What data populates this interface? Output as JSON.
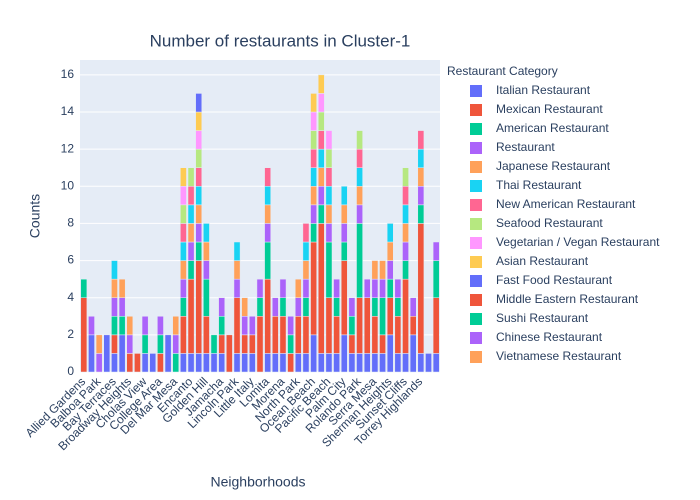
{
  "chart_data": {
    "type": "bar",
    "title": "Number of restaurants in Cluster-1",
    "x_label": "Neighborhoods",
    "y_label": "Counts",
    "legend_title": "Restaurant Category",
    "categories": [
      "Allied Gardens",
      null,
      "Balboa Park",
      null,
      "Bay Terraces",
      null,
      "Broadway Heights",
      null,
      "Cholas View",
      null,
      "College Area",
      null,
      "Del Mar Mesa",
      null,
      "Encanto",
      null,
      "Golden Hill",
      null,
      "Jamacha",
      null,
      "Lincoln Park",
      null,
      "Little Italy",
      null,
      "Lomita",
      null,
      "Morena",
      null,
      "North Park",
      null,
      "Ocean Beach",
      null,
      "Pacific Beach",
      null,
      "Palm City",
      null,
      "Rolando Park",
      null,
      "Serra Mesa",
      null,
      "Sherman Heights",
      null,
      "Sunset Cliffs",
      null,
      "Torrey Highlands",
      null,
      null
    ],
    "ylim": [
      0,
      16.8
    ],
    "yticks": [
      0,
      2,
      4,
      6,
      8,
      10,
      12,
      14,
      16
    ],
    "grid": true,
    "series": [
      {
        "name": "Italian Restaurant",
        "color": "#636efa",
        "values": [
          0,
          2,
          0,
          2,
          1,
          2,
          0,
          0,
          1,
          1,
          0,
          2,
          0,
          1,
          1,
          1,
          1,
          1,
          1,
          0,
          1,
          1,
          1,
          0,
          1,
          1,
          1,
          0,
          1,
          1,
          2,
          1,
          1,
          1,
          2,
          1,
          1,
          1,
          1,
          1,
          2,
          1,
          1,
          2,
          1,
          1,
          1
        ]
      },
      {
        "name": "Mexican Restaurant",
        "color": "#EF553B",
        "values": [
          4,
          0,
          0,
          0,
          1,
          0,
          1,
          1,
          0,
          0,
          1,
          0,
          0,
          2,
          4,
          5,
          2,
          0,
          1,
          2,
          3,
          1,
          1,
          3,
          4,
          2,
          2,
          1,
          2,
          2,
          5,
          7,
          3,
          2,
          4,
          1,
          3,
          3,
          2,
          1,
          2,
          2,
          4,
          1,
          7,
          0,
          3
        ]
      },
      {
        "name": "American Restaurant",
        "color": "#00cc96",
        "values": [
          1,
          0,
          0,
          0,
          1,
          1,
          0,
          0,
          1,
          0,
          1,
          0,
          1,
          1,
          1,
          1,
          2,
          1,
          1,
          0,
          0,
          0,
          0,
          1,
          2,
          0,
          1,
          1,
          0,
          1,
          1,
          1,
          3,
          1,
          1,
          1,
          4,
          0,
          1,
          2,
          1,
          1,
          1,
          0,
          1,
          0,
          2
        ]
      },
      {
        "name": "Restaurant",
        "color": "#ab63fa",
        "values": [
          0,
          1,
          1,
          0,
          1,
          1,
          1,
          0,
          1,
          0,
          1,
          0,
          1,
          1,
          1,
          1,
          1,
          0,
          1,
          0,
          1,
          1,
          1,
          1,
          1,
          1,
          1,
          1,
          1,
          1,
          1,
          1,
          1,
          1,
          1,
          1,
          1,
          1,
          1,
          1,
          1,
          1,
          1,
          1,
          1,
          0,
          1
        ]
      },
      {
        "name": "Japanese Restaurant",
        "color": "#FFA15A",
        "values": [
          0,
          0,
          1,
          0,
          1,
          1,
          1,
          0,
          0,
          0,
          0,
          0,
          1,
          1,
          1,
          1,
          1,
          0,
          0,
          0,
          1,
          1,
          0,
          0,
          1,
          0,
          0,
          0,
          1,
          1,
          1,
          1,
          1,
          0,
          1,
          0,
          1,
          0,
          1,
          1,
          1,
          0,
          1,
          0,
          1,
          0,
          0
        ]
      },
      {
        "name": "Thai Restaurant",
        "color": "#19d3f3",
        "values": [
          0,
          0,
          0,
          0,
          1,
          0,
          0,
          0,
          0,
          0,
          0,
          0,
          0,
          1,
          1,
          1,
          1,
          0,
          0,
          0,
          1,
          0,
          0,
          0,
          1,
          0,
          0,
          0,
          0,
          1,
          1,
          1,
          1,
          0,
          1,
          0,
          1,
          0,
          0,
          0,
          1,
          0,
          1,
          0,
          1,
          0,
          0
        ]
      },
      {
        "name": "New American Restaurant",
        "color": "#FF6692",
        "values": [
          0,
          0,
          0,
          0,
          0,
          0,
          0,
          0,
          0,
          0,
          0,
          0,
          0,
          1,
          1,
          1,
          0,
          0,
          0,
          0,
          0,
          0,
          0,
          0,
          1,
          0,
          0,
          0,
          0,
          1,
          1,
          1,
          1,
          0,
          0,
          0,
          1,
          0,
          0,
          0,
          0,
          0,
          1,
          0,
          1,
          0,
          0
        ]
      },
      {
        "name": "Seafood Restaurant",
        "color": "#B6E880",
        "values": [
          0,
          0,
          0,
          0,
          0,
          0,
          0,
          0,
          0,
          0,
          0,
          0,
          0,
          1,
          1,
          1,
          0,
          0,
          0,
          0,
          0,
          0,
          0,
          0,
          0,
          0,
          0,
          0,
          0,
          0,
          1,
          1,
          1,
          0,
          0,
          0,
          1,
          0,
          0,
          0,
          0,
          0,
          1,
          0,
          0,
          0,
          0
        ]
      },
      {
        "name": "Vegetarian / Vegan Restaurant",
        "color": "#FF97FF",
        "values": [
          0,
          0,
          0,
          0,
          0,
          0,
          0,
          0,
          0,
          0,
          0,
          0,
          0,
          1,
          0,
          1,
          0,
          0,
          0,
          0,
          0,
          0,
          0,
          0,
          0,
          0,
          0,
          0,
          0,
          0,
          1,
          1,
          1,
          0,
          0,
          0,
          0,
          0,
          0,
          0,
          0,
          0,
          0,
          0,
          0,
          0,
          0
        ]
      },
      {
        "name": "Asian Restaurant",
        "color": "#FECB52",
        "values": [
          0,
          0,
          0,
          0,
          0,
          0,
          0,
          0,
          0,
          0,
          0,
          0,
          0,
          1,
          0,
          1,
          0,
          0,
          0,
          0,
          0,
          0,
          0,
          0,
          0,
          0,
          0,
          0,
          0,
          0,
          1,
          1,
          0,
          0,
          0,
          0,
          0,
          0,
          0,
          0,
          0,
          0,
          0,
          0,
          0,
          0,
          0
        ]
      },
      {
        "name": "Fast Food Restaurant",
        "color": "#636efa",
        "values": [
          0,
          0,
          0,
          0,
          0,
          0,
          0,
          0,
          0,
          0,
          0,
          0,
          0,
          0,
          0,
          1,
          0,
          0,
          0,
          0,
          0,
          0,
          0,
          0,
          0,
          0,
          0,
          0,
          0,
          0,
          0,
          0,
          0,
          0,
          0,
          0,
          0,
          0,
          0,
          0,
          0,
          0,
          0,
          0,
          0,
          0,
          0
        ]
      },
      {
        "name": "Middle Eastern Restaurant",
        "color": "#EF553B",
        "values": [
          0,
          0,
          0,
          0,
          0,
          0,
          0,
          0,
          0,
          0,
          0,
          0,
          0,
          0,
          0,
          0,
          0,
          0,
          0,
          0,
          0,
          0,
          0,
          0,
          0,
          0,
          0,
          0,
          0,
          0,
          0,
          0,
          0,
          0,
          0,
          0,
          0,
          0,
          0,
          0,
          0,
          0,
          0,
          0,
          0,
          0,
          0
        ]
      },
      {
        "name": "Sushi Restaurant",
        "color": "#00cc96",
        "values": [
          0,
          0,
          0,
          0,
          0,
          0,
          0,
          0,
          0,
          0,
          0,
          0,
          0,
          0,
          0,
          0,
          0,
          0,
          0,
          0,
          0,
          0,
          0,
          0,
          0,
          0,
          0,
          0,
          0,
          0,
          0,
          0,
          0,
          0,
          0,
          0,
          0,
          0,
          0,
          0,
          0,
          0,
          0,
          0,
          0,
          0,
          0
        ]
      },
      {
        "name": "Chinese Restaurant",
        "color": "#ab63fa",
        "values": [
          0,
          0,
          0,
          0,
          0,
          0,
          0,
          0,
          0,
          0,
          0,
          0,
          0,
          0,
          0,
          0,
          0,
          0,
          0,
          0,
          0,
          0,
          0,
          0,
          0,
          0,
          0,
          0,
          0,
          0,
          0,
          0,
          0,
          0,
          0,
          0,
          0,
          0,
          0,
          0,
          0,
          0,
          0,
          0,
          0,
          0,
          0
        ]
      },
      {
        "name": "Vietnamese Restaurant",
        "color": "#FFA15A",
        "values": [
          0,
          0,
          0,
          0,
          0,
          0,
          0,
          0,
          0,
          0,
          0,
          0,
          0,
          0,
          0,
          0,
          0,
          0,
          0,
          0,
          0,
          0,
          0,
          0,
          0,
          0,
          0,
          0,
          0,
          0,
          0,
          0,
          0,
          0,
          0,
          0,
          0,
          0,
          0,
          0,
          0,
          0,
          0,
          0,
          0,
          0,
          0
        ]
      }
    ]
  }
}
